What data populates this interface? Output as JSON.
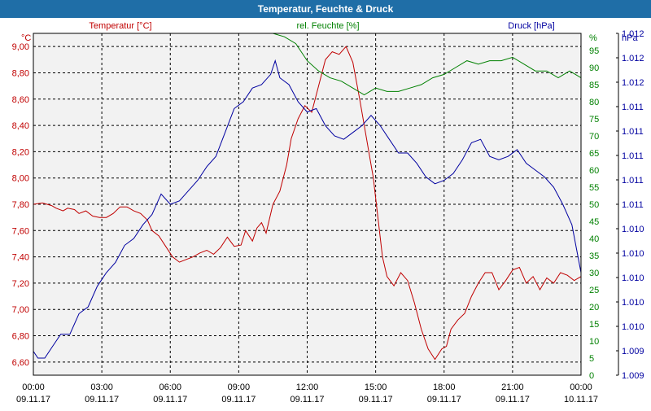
{
  "window": {
    "title": "Temperatur, Feuchte & Druck"
  },
  "colors": {
    "title_bar": "#1f6ea7",
    "plot_bg": "#f2f2f2",
    "temperature": "#c00000",
    "humidity": "#008000",
    "pressure": "#0000a0",
    "grid": "#000000"
  },
  "chart_data": {
    "type": "line",
    "title": "Temperatur, Feuchte & Druck",
    "grid": true,
    "x": {
      "ticks": [
        {
          "time": "00:00",
          "date": "09.11.17"
        },
        {
          "time": "03:00",
          "date": "09.11.17"
        },
        {
          "time": "06:00",
          "date": "09.11.17"
        },
        {
          "time": "09:00",
          "date": "09.11.17"
        },
        {
          "time": "12:00",
          "date": "09.11.17"
        },
        {
          "time": "15:00",
          "date": "09.11.17"
        },
        {
          "time": "18:00",
          "date": "09.11.17"
        },
        {
          "time": "21:00",
          "date": "09.11.17"
        },
        {
          "time": "00:00",
          "date": "10.11.17"
        }
      ],
      "range_hours": [
        0,
        24
      ]
    },
    "axes": {
      "left": {
        "label": "Temperatur [°C]",
        "unit": "°C",
        "range": [
          6.5,
          9.1
        ],
        "ticks": [
          "6,60",
          "6,80",
          "7,00",
          "7,20",
          "7,40",
          "7,60",
          "7,80",
          "8,00",
          "8,20",
          "8,40",
          "8,60",
          "8,80",
          "9,00"
        ],
        "tick_values": [
          6.6,
          6.8,
          7.0,
          7.2,
          7.4,
          7.6,
          7.8,
          8.0,
          8.2,
          8.4,
          8.6,
          8.8,
          9.0
        ]
      },
      "middle": {
        "label": "rel. Feuchte [%]",
        "unit": "%",
        "range": [
          0,
          100
        ],
        "ticks": [
          "0",
          "5",
          "10",
          "15",
          "20",
          "25",
          "30",
          "35",
          "40",
          "45",
          "50",
          "55",
          "60",
          "65",
          "70",
          "75",
          "80",
          "85",
          "90",
          "95"
        ],
        "tick_values": [
          0,
          5,
          10,
          15,
          20,
          25,
          30,
          35,
          40,
          45,
          50,
          55,
          60,
          65,
          70,
          75,
          80,
          85,
          90,
          95
        ]
      },
      "right": {
        "label": "Druck [hPa]",
        "unit": "hPa",
        "ticks": [
          "1.009",
          "1.009",
          "1.010",
          "1.010",
          "1.010",
          "1.010",
          "1.010",
          "1.011",
          "1.011",
          "1.011",
          "1.011",
          "1.011",
          "1.012",
          "1.012",
          "1.012"
        ],
        "tick_pos_pct": [
          0,
          7.143,
          14.286,
          21.429,
          28.571,
          35.714,
          42.857,
          50,
          57.143,
          64.286,
          71.429,
          78.571,
          85.714,
          92.857,
          100
        ]
      }
    },
    "series": [
      {
        "name": "Temperatur [°C]",
        "axis": "left",
        "x_hours": [
          0,
          0.4,
          0.8,
          1.0,
          1.3,
          1.5,
          1.8,
          2.0,
          2.3,
          2.6,
          2.9,
          3.2,
          3.5,
          3.8,
          4.1,
          4.4,
          4.7,
          5.0,
          5.2,
          5.5,
          5.8,
          6.1,
          6.4,
          6.7,
          7.0,
          7.3,
          7.6,
          7.9,
          8.2,
          8.5,
          8.8,
          9.1,
          9.3,
          9.6,
          9.8,
          10.0,
          10.2,
          10.5,
          10.8,
          11.1,
          11.3,
          11.6,
          11.9,
          12.2,
          12.5,
          12.8,
          13.1,
          13.4,
          13.7,
          14.0,
          14.3,
          14.6,
          14.9,
          15.1,
          15.3,
          15.5,
          15.8,
          16.1,
          16.4,
          16.7,
          17.0,
          17.3,
          17.6,
          17.9,
          18.1,
          18.3,
          18.6,
          18.9,
          19.2,
          19.5,
          19.8,
          20.1,
          20.4,
          20.7,
          21.0,
          21.3,
          21.6,
          21.9,
          22.2,
          22.5,
          22.8,
          23.1,
          23.4,
          23.7,
          24.0
        ],
        "values": [
          7.8,
          7.81,
          7.79,
          7.77,
          7.75,
          7.77,
          7.76,
          7.73,
          7.75,
          7.71,
          7.7,
          7.7,
          7.73,
          7.78,
          7.78,
          7.75,
          7.73,
          7.68,
          7.6,
          7.56,
          7.48,
          7.4,
          7.36,
          7.38,
          7.4,
          7.43,
          7.45,
          7.42,
          7.47,
          7.55,
          7.48,
          7.49,
          7.6,
          7.52,
          7.62,
          7.66,
          7.58,
          7.8,
          7.9,
          8.1,
          8.3,
          8.45,
          8.55,
          8.5,
          8.7,
          8.9,
          8.96,
          8.94,
          9.0,
          8.88,
          8.6,
          8.3,
          8.0,
          7.7,
          7.4,
          7.25,
          7.18,
          7.28,
          7.22,
          7.05,
          6.85,
          6.7,
          6.62,
          6.7,
          6.72,
          6.85,
          6.92,
          6.97,
          7.1,
          7.2,
          7.28,
          7.28,
          7.15,
          7.22,
          7.3,
          7.32,
          7.2,
          7.25,
          7.15,
          7.24,
          7.2,
          7.28,
          7.26,
          7.22,
          7.25
        ]
      },
      {
        "name": "rel. Feuchte [%]",
        "axis": "middle",
        "x_hours": [
          10.5,
          11.0,
          11.5,
          12.0,
          12.5,
          13.0,
          13.5,
          14.0,
          14.5,
          15.0,
          15.5,
          16.0,
          16.5,
          17.0,
          17.5,
          18.0,
          18.5,
          19.0,
          19.5,
          20.0,
          20.5,
          21.0,
          21.5,
          22.0,
          22.5,
          23.0,
          23.5,
          24.0
        ],
        "values": [
          100,
          99,
          97,
          92,
          89,
          87,
          86,
          84,
          82,
          84,
          83,
          83,
          84,
          85,
          87,
          88,
          90,
          92,
          91,
          92,
          92,
          93,
          91,
          89,
          89,
          87,
          89,
          87
        ]
      },
      {
        "name": "Druck [hPa]",
        "axis": "right",
        "range": [
          0,
          100
        ],
        "x_hours": [
          0,
          0.2,
          0.5,
          0.8,
          1.2,
          1.6,
          2.0,
          2.4,
          2.8,
          3.2,
          3.6,
          4.0,
          4.4,
          4.8,
          5.2,
          5.6,
          6.0,
          6.4,
          6.8,
          7.2,
          7.6,
          8.0,
          8.4,
          8.8,
          9.2,
          9.6,
          10.0,
          10.4,
          10.6,
          10.8,
          11.2,
          11.6,
          12.0,
          12.4,
          12.8,
          13.2,
          13.6,
          14.0,
          14.4,
          14.8,
          15.2,
          15.6,
          16.0,
          16.4,
          16.8,
          17.2,
          17.6,
          18.0,
          18.4,
          18.8,
          19.2,
          19.6,
          20.0,
          20.4,
          20.8,
          21.2,
          21.6,
          22.0,
          22.4,
          22.8,
          23.2,
          23.6,
          24.0
        ],
        "values": [
          7,
          5,
          5,
          8,
          12,
          12,
          18,
          20,
          26,
          30,
          33,
          38,
          40,
          44,
          47,
          53,
          50,
          51,
          54,
          57,
          61,
          64,
          71,
          78,
          80,
          84,
          85,
          88,
          92,
          87,
          85,
          80,
          77,
          78,
          73,
          70,
          69,
          71,
          73,
          76,
          73,
          69,
          65,
          65,
          62,
          58,
          56,
          57,
          59,
          63,
          68,
          69,
          64,
          63,
          64,
          66,
          62,
          60,
          58,
          55,
          50,
          44,
          30
        ]
      }
    ]
  }
}
